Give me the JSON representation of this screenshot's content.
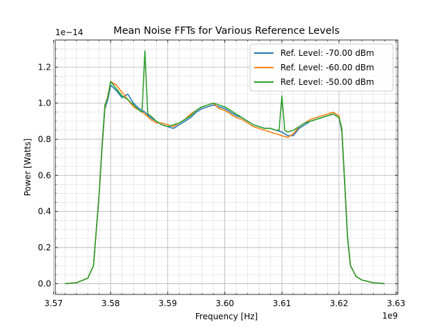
{
  "chart_data": {
    "type": "line",
    "title": "Mean Noise FFTs for Various Reference Levels",
    "xlabel": "Frequency [Hz]",
    "ylabel": "Power [Watts]",
    "x_offset_label": "1e9",
    "y_offset_label": "1e−14",
    "xlim": [
      3.5703,
      3.6303
    ],
    "ylim": [
      -0.06,
      1.35
    ],
    "xticks": [
      3.57,
      3.58,
      3.59,
      3.6,
      3.61,
      3.62,
      3.63
    ],
    "xtick_labels": [
      "3.57",
      "3.58",
      "3.59",
      "3.60",
      "3.61",
      "3.62",
      "3.63"
    ],
    "yticks": [
      0.0,
      0.2,
      0.4,
      0.6,
      0.8,
      1.0,
      1.2
    ],
    "ytick_labels": [
      "0.0",
      "0.2",
      "0.4",
      "0.6",
      "0.8",
      "1.0",
      "1.2"
    ],
    "grid": true,
    "legend_position": "top-right",
    "series": [
      {
        "name": "Ref. Level: -70.00 dBm",
        "color": "#1f77b4",
        "x": [
          3.572,
          3.574,
          3.576,
          3.577,
          3.578,
          3.5785,
          3.579,
          3.5795,
          3.58,
          3.581,
          3.582,
          3.583,
          3.584,
          3.585,
          3.586,
          3.587,
          3.588,
          3.589,
          3.59,
          3.591,
          3.592,
          3.593,
          3.594,
          3.595,
          3.596,
          3.597,
          3.598,
          3.599,
          3.6,
          3.601,
          3.602,
          3.603,
          3.604,
          3.605,
          3.606,
          3.607,
          3.608,
          3.609,
          3.61,
          3.611,
          3.612,
          3.613,
          3.614,
          3.615,
          3.616,
          3.617,
          3.618,
          3.619,
          3.62,
          3.6205,
          3.621,
          3.6215,
          3.622,
          3.623,
          3.624,
          3.626,
          3.628
        ],
        "values": [
          0.0,
          0.005,
          0.03,
          0.1,
          0.5,
          0.75,
          0.97,
          1.02,
          1.1,
          1.07,
          1.03,
          1.05,
          1.0,
          0.97,
          0.95,
          0.92,
          0.9,
          0.88,
          0.87,
          0.86,
          0.88,
          0.9,
          0.92,
          0.95,
          0.97,
          0.98,
          0.99,
          0.98,
          0.97,
          0.95,
          0.93,
          0.92,
          0.9,
          0.88,
          0.87,
          0.86,
          0.86,
          0.85,
          0.84,
          0.82,
          0.82,
          0.86,
          0.88,
          0.9,
          0.91,
          0.92,
          0.93,
          0.94,
          0.92,
          0.84,
          0.55,
          0.25,
          0.1,
          0.04,
          0.02,
          0.005,
          0.0
        ]
      },
      {
        "name": "Ref. Level: -60.00 dBm",
        "color": "#ff7f0e",
        "x": [
          3.572,
          3.574,
          3.576,
          3.577,
          3.578,
          3.5785,
          3.579,
          3.5795,
          3.58,
          3.581,
          3.582,
          3.583,
          3.584,
          3.585,
          3.586,
          3.587,
          3.588,
          3.589,
          3.59,
          3.591,
          3.592,
          3.593,
          3.594,
          3.595,
          3.596,
          3.597,
          3.598,
          3.599,
          3.6,
          3.601,
          3.602,
          3.603,
          3.604,
          3.605,
          3.606,
          3.607,
          3.608,
          3.609,
          3.61,
          3.611,
          3.612,
          3.613,
          3.614,
          3.615,
          3.616,
          3.617,
          3.618,
          3.619,
          3.62,
          3.6205,
          3.621,
          3.6215,
          3.622,
          3.623,
          3.624,
          3.626,
          3.628
        ],
        "values": [
          0.0,
          0.005,
          0.03,
          0.1,
          0.5,
          0.76,
          0.98,
          1.04,
          1.12,
          1.1,
          1.06,
          1.02,
          0.98,
          0.96,
          0.94,
          0.91,
          0.89,
          0.89,
          0.88,
          0.87,
          0.89,
          0.91,
          0.94,
          0.96,
          0.98,
          0.99,
          1.0,
          0.97,
          0.96,
          0.94,
          0.92,
          0.91,
          0.89,
          0.87,
          0.86,
          0.85,
          0.84,
          0.83,
          0.82,
          0.81,
          0.83,
          0.87,
          0.89,
          0.91,
          0.92,
          0.93,
          0.94,
          0.95,
          0.93,
          0.85,
          0.56,
          0.26,
          0.1,
          0.04,
          0.02,
          0.005,
          0.0
        ]
      },
      {
        "name": "Ref. Level: -50.00 dBm",
        "color": "#2ca02c",
        "x": [
          3.572,
          3.574,
          3.576,
          3.577,
          3.578,
          3.5785,
          3.579,
          3.5795,
          3.58,
          3.581,
          3.582,
          3.583,
          3.584,
          3.585,
          3.5855,
          3.586,
          3.5865,
          3.587,
          3.588,
          3.589,
          3.59,
          3.591,
          3.592,
          3.593,
          3.594,
          3.595,
          3.596,
          3.597,
          3.598,
          3.599,
          3.6,
          3.601,
          3.602,
          3.603,
          3.604,
          3.605,
          3.606,
          3.607,
          3.608,
          3.609,
          3.6095,
          3.61,
          3.6105,
          3.611,
          3.612,
          3.613,
          3.614,
          3.615,
          3.616,
          3.617,
          3.618,
          3.619,
          3.62,
          3.6205,
          3.621,
          3.6215,
          3.622,
          3.623,
          3.624,
          3.626,
          3.628
        ],
        "values": [
          0.0,
          0.005,
          0.03,
          0.1,
          0.5,
          0.77,
          0.99,
          1.03,
          1.12,
          1.08,
          1.04,
          1.02,
          0.99,
          0.96,
          0.95,
          1.29,
          0.94,
          0.93,
          0.9,
          0.88,
          0.87,
          0.88,
          0.89,
          0.91,
          0.93,
          0.96,
          0.98,
          0.99,
          1.0,
          0.99,
          0.98,
          0.96,
          0.94,
          0.92,
          0.9,
          0.88,
          0.87,
          0.86,
          0.86,
          0.85,
          0.85,
          1.04,
          0.85,
          0.84,
          0.85,
          0.87,
          0.89,
          0.9,
          0.91,
          0.92,
          0.93,
          0.94,
          0.92,
          0.86,
          0.56,
          0.26,
          0.1,
          0.04,
          0.02,
          0.005,
          0.0
        ]
      }
    ]
  }
}
